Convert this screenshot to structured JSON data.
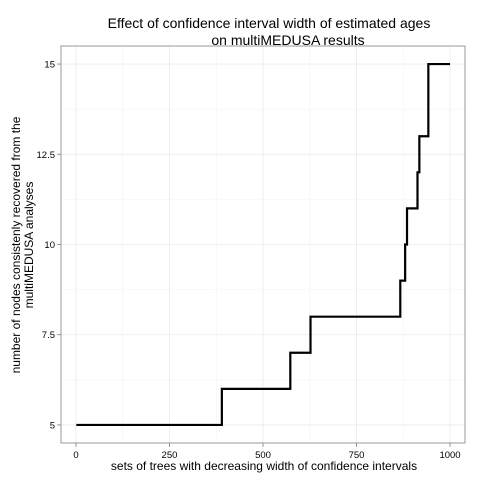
{
  "chart_data": {
    "type": "line",
    "step": "hv",
    "title_lines": [
      "Effect of confidence interval width of estimated ages",
      "on multiMEDUSA results"
    ],
    "xlabel": "sets of trees with decreasing width of confidence intervals",
    "ylabel_lines": [
      "number of nodes consistenly recovered from the",
      "multiMEDUSA analyses"
    ],
    "xlim": [
      -40,
      1040
    ],
    "ylim": [
      4.5,
      15.5
    ],
    "x_ticks": [
      0,
      250,
      500,
      750,
      1000
    ],
    "y_ticks": [
      5,
      7.5,
      10,
      12.5,
      15
    ],
    "x_tick_labels": [
      "0",
      "250",
      "500",
      "750",
      "1000"
    ],
    "y_tick_labels": [
      "5",
      "7.5",
      "10",
      "12.5",
      "15"
    ],
    "grid": true,
    "series": [
      {
        "color": "#000000",
        "x": [
          1,
          390,
          573,
          627,
          867,
          880,
          885,
          900,
          913,
          918,
          942,
          1000
        ],
        "y": [
          5,
          6,
          7,
          8,
          9,
          10,
          11,
          11,
          12,
          13,
          15,
          15
        ]
      }
    ]
  }
}
